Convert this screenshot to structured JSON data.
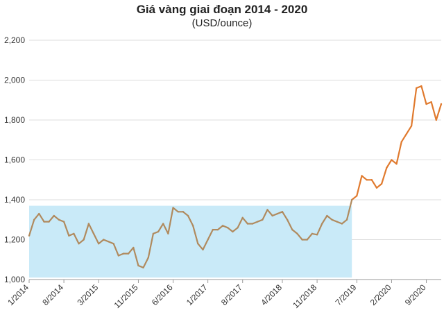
{
  "chart_data": {
    "type": "line",
    "title": "Giá vàng giai đoạn 2014 - 2020",
    "subtitle": "(USD/ounce)",
    "xlabel": "",
    "ylabel": "",
    "ylim": [
      1000,
      2200
    ],
    "yticks": [
      "1,000",
      "1,200",
      "1,400",
      "1,600",
      "1,800",
      "2,000",
      "2,200"
    ],
    "xticks": [
      "1/2014",
      "8/2014",
      "3/2015",
      "11/2015",
      "6/2016",
      "1/2017",
      "8/2017",
      "4/2018",
      "11/2018",
      "7/2019",
      "2/2020",
      "9/2020"
    ],
    "grid": true,
    "highlight": {
      "x_from": "1/2014",
      "x_to": "6/2019",
      "y_from": 1010,
      "y_to": 1370,
      "color": "#c9eaf8"
    },
    "series": [
      {
        "color_before": "#b08a5e",
        "color_after": "#e07a2e",
        "split_at": "6/2019",
        "x": [
          "1/2014",
          "2/2014",
          "3/2014",
          "4/2014",
          "5/2014",
          "6/2014",
          "7/2014",
          "8/2014",
          "9/2014",
          "10/2014",
          "11/2014",
          "12/2014",
          "1/2015",
          "2/2015",
          "3/2015",
          "4/2015",
          "5/2015",
          "6/2015",
          "7/2015",
          "8/2015",
          "9/2015",
          "10/2015",
          "11/2015",
          "12/2015",
          "1/2016",
          "2/2016",
          "3/2016",
          "4/2016",
          "5/2016",
          "6/2016",
          "7/2016",
          "8/2016",
          "9/2016",
          "10/2016",
          "11/2016",
          "12/2016",
          "1/2017",
          "2/2017",
          "3/2017",
          "4/2017",
          "5/2017",
          "6/2017",
          "7/2017",
          "8/2017",
          "9/2017",
          "10/2017",
          "11/2017",
          "12/2017",
          "1/2018",
          "2/2018",
          "3/2018",
          "4/2018",
          "5/2018",
          "6/2018",
          "7/2018",
          "8/2018",
          "9/2018",
          "10/2018",
          "11/2018",
          "12/2018",
          "1/2019",
          "2/2019",
          "3/2019",
          "4/2019",
          "5/2019",
          "6/2019",
          "7/2019",
          "8/2019",
          "9/2019",
          "10/2019",
          "11/2019",
          "12/2019",
          "1/2020",
          "2/2020",
          "3/2020",
          "4/2020",
          "5/2020",
          "6/2020",
          "7/2020",
          "8/2020",
          "9/2020",
          "10/2020",
          "11/2020",
          "12/2020"
        ],
        "values": [
          1220,
          1300,
          1330,
          1290,
          1290,
          1320,
          1300,
          1290,
          1220,
          1230,
          1180,
          1200,
          1280,
          1230,
          1180,
          1200,
          1190,
          1180,
          1120,
          1130,
          1130,
          1160,
          1070,
          1060,
          1110,
          1230,
          1240,
          1280,
          1230,
          1360,
          1340,
          1340,
          1320,
          1270,
          1180,
          1150,
          1200,
          1250,
          1250,
          1270,
          1260,
          1240,
          1260,
          1310,
          1280,
          1280,
          1290,
          1300,
          1350,
          1320,
          1330,
          1340,
          1300,
          1250,
          1230,
          1200,
          1200,
          1230,
          1225,
          1280,
          1320,
          1300,
          1290,
          1280,
          1300,
          1400,
          1420,
          1520,
          1500,
          1500,
          1460,
          1480,
          1560,
          1600,
          1580,
          1690,
          1730,
          1770,
          1960,
          1970,
          1880,
          1890,
          1800,
          1880
        ]
      }
    ]
  }
}
